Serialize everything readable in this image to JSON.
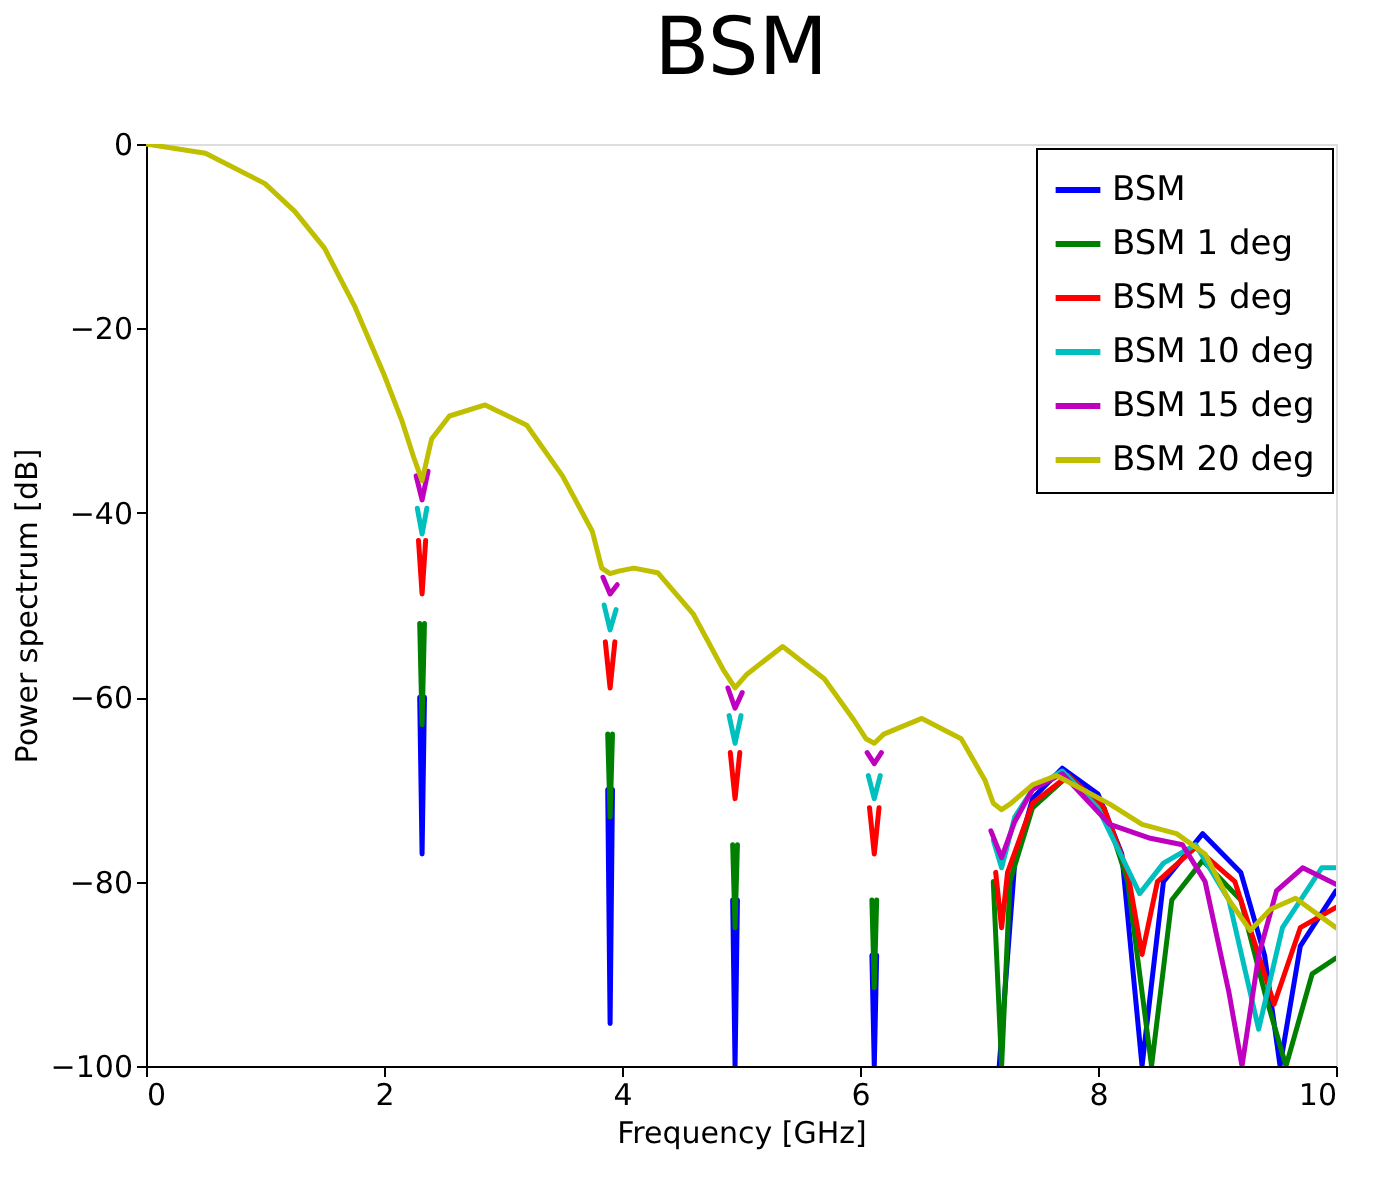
{
  "chart_data": {
    "type": "line",
    "title": "BSM",
    "xlabel": "Frequency [GHz]",
    "ylabel": "Power spectrum [dB]",
    "xlim": [
      0,
      10
    ],
    "ylim": [
      -100,
      0
    ],
    "xticks": [
      0,
      2,
      4,
      6,
      8,
      10
    ],
    "yticks": [
      0,
      -20,
      -40,
      -60,
      -80,
      -100
    ],
    "grid": false,
    "legend": "top right",
    "marker": "none",
    "line_style": "solid",
    "series": [
      {
        "name": "BSM",
        "color": "#0000ff",
        "x": [
          2.3,
          2.32,
          2.34,
          3.0,
          3.88,
          3.9,
          3.92,
          4.5,
          4.93,
          4.95,
          4.97,
          5.5,
          6.1,
          6.12,
          6.14,
          6.6,
          7.17,
          7.3,
          7.45,
          7.7,
          8.0,
          8.2,
          8.37,
          8.55,
          8.88,
          9.2,
          9.4,
          9.53,
          9.7,
          10
        ],
        "values": [
          -60,
          -77,
          -60,
          null,
          -70,
          -95.4,
          -70,
          null,
          -82,
          -100,
          -82,
          null,
          -88,
          -100,
          -88,
          null,
          -100,
          -78,
          -71,
          -67.7,
          -70.5,
          -77,
          -100,
          -80,
          -74.8,
          -79,
          -88,
          -100,
          -87,
          -81
        ]
      },
      {
        "name": "BSM 1 deg",
        "color": "#008000",
        "x": [
          2.3,
          2.32,
          2.34,
          3.0,
          3.88,
          3.9,
          3.92,
          4.5,
          4.93,
          4.95,
          4.97,
          5.5,
          6.1,
          6.12,
          6.14,
          6.6,
          7.12,
          7.19,
          7.26,
          7.45,
          7.75,
          8.05,
          8.25,
          8.45,
          8.62,
          8.88,
          9.2,
          9.4,
          9.58,
          9.8,
          10
        ],
        "values": [
          -52,
          -63,
          -52,
          null,
          -64,
          -73,
          -64,
          null,
          -76,
          -85,
          -76,
          null,
          -82,
          -91.5,
          -82,
          null,
          -80,
          -100,
          -80,
          -72,
          -68.5,
          -72,
          -80,
          -100,
          -82,
          -77.7,
          -82,
          -92,
          -100,
          -90,
          -88.3
        ]
      },
      {
        "name": "BSM 5 deg",
        "color": "#ff0000",
        "x": [
          2.29,
          2.32,
          2.35,
          3.0,
          3.86,
          3.9,
          3.94,
          4.5,
          4.91,
          4.95,
          4.99,
          5.5,
          6.08,
          6.12,
          6.16,
          6.6,
          7.14,
          7.19,
          7.24,
          7.45,
          7.75,
          8.05,
          8.25,
          8.37,
          8.5,
          8.82,
          9.15,
          9.35,
          9.48,
          9.7,
          10
        ],
        "values": [
          -43,
          -48.8,
          -43,
          null,
          -54,
          -59,
          -54,
          null,
          -66,
          -71,
          -66,
          null,
          -72,
          -77,
          -72,
          null,
          -79,
          -85,
          -79,
          -71.5,
          -68.5,
          -72,
          -79,
          -87.9,
          -80,
          -76.3,
          -80,
          -88,
          -93.3,
          -85,
          -82.8
        ]
      },
      {
        "name": "BSM 10 deg",
        "color": "#00bfbf",
        "x": [
          2.28,
          2.32,
          2.36,
          3.0,
          3.85,
          3.9,
          3.95,
          4.5,
          4.9,
          4.95,
          5.0,
          5.5,
          6.07,
          6.12,
          6.17,
          6.6,
          7.12,
          7.19,
          7.3,
          7.45,
          7.7,
          8.0,
          8.35,
          8.55,
          8.82,
          9.1,
          9.35,
          9.55,
          9.88,
          10
        ],
        "values": [
          -39.5,
          -42.3,
          -39.5,
          null,
          -50,
          -52.7,
          -50.5,
          null,
          -62,
          -65,
          -62,
          null,
          -68.5,
          -71,
          -68.5,
          null,
          -75.5,
          -78.5,
          -73,
          -70,
          -68,
          -72,
          -81.3,
          -78,
          -76,
          -82,
          -96,
          -85,
          -78.5,
          -78.5
        ]
      },
      {
        "name": "BSM 15 deg",
        "color": "#bf00bf",
        "x": [
          2.27,
          2.32,
          2.37,
          3.0,
          3.84,
          3.9,
          3.96,
          4.5,
          4.89,
          4.95,
          5.01,
          5.5,
          6.06,
          6.12,
          6.18,
          6.6,
          7.1,
          7.19,
          7.3,
          7.45,
          7.7,
          8.1,
          8.44,
          8.71,
          8.9,
          9.1,
          9.21,
          9.35,
          9.5,
          9.72,
          10
        ],
        "values": [
          -36,
          -38.6,
          -35.5,
          null,
          -47,
          -48.8,
          -47.8,
          null,
          -59,
          -61.2,
          -59.5,
          null,
          -66,
          -67.2,
          -66,
          null,
          -74.5,
          -77.4,
          -73.5,
          -70,
          -68.3,
          -73.8,
          -75.3,
          -76,
          -80,
          -92,
          -100,
          -88,
          -81,
          -78.5,
          -80.3
        ]
      },
      {
        "name": "BSM 20 deg",
        "color": "#bfbf00",
        "x": [
          0,
          0.5,
          1,
          1.25,
          1.5,
          1.75,
          2,
          2.15,
          2.25,
          2.32,
          2.4,
          2.55,
          2.85,
          3.2,
          3.5,
          3.75,
          3.83,
          3.9,
          3.98,
          4.1,
          4.3,
          4.6,
          4.85,
          4.95,
          5.05,
          5.35,
          5.7,
          5.95,
          6.05,
          6.12,
          6.2,
          6.52,
          6.85,
          7.05,
          7.12,
          7.19,
          7.27,
          7.45,
          7.65,
          8.1,
          8.37,
          8.66,
          8.9,
          9.1,
          9.28,
          9.45,
          9.66,
          10
        ],
        "values": [
          0,
          -1,
          -4.3,
          -7.3,
          -11.3,
          -17.5,
          -25,
          -30,
          -34,
          -36.5,
          -32,
          -29.5,
          -28.3,
          -30.5,
          -36,
          -42,
          -46,
          -46.6,
          -46.3,
          -46,
          -46.5,
          -51,
          -57,
          -59,
          -57.5,
          -54.5,
          -58,
          -62.5,
          -64.5,
          -65,
          -64,
          -62.3,
          -64.5,
          -69,
          -71.5,
          -72.2,
          -71.5,
          -69.5,
          -68.5,
          -71.6,
          -73.8,
          -74.8,
          -77,
          -82,
          -85.3,
          -83,
          -81.8,
          -85
        ]
      }
    ]
  }
}
